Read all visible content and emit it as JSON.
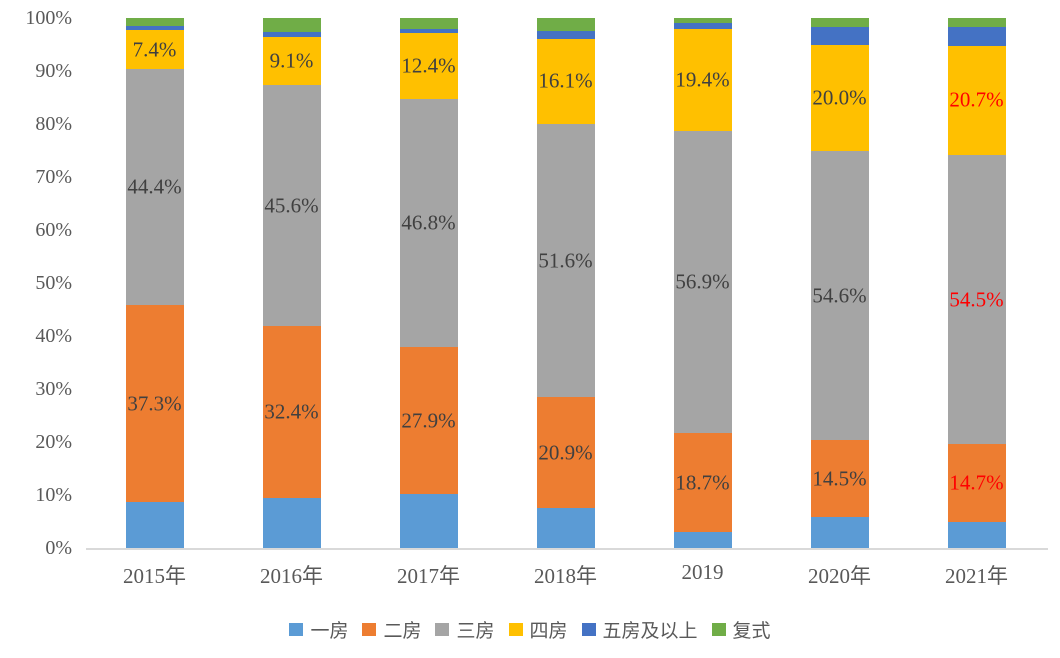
{
  "chart_data": {
    "type": "bar",
    "subtype": "stacked-100-percent",
    "title": "",
    "xlabel": "",
    "ylabel": "",
    "ylim": [
      0,
      100
    ],
    "grid": false,
    "y_ticks": [
      "0%",
      "10%",
      "20%",
      "30%",
      "40%",
      "50%",
      "60%",
      "70%",
      "80%",
      "90%",
      "100%"
    ],
    "categories": [
      "2015年",
      "2016年",
      "2017年",
      "2018年",
      "2019",
      "2020年",
      "2021年"
    ],
    "series": [
      {
        "name": "一房",
        "color": "#5B9BD5",
        "values": [
          8.6,
          9.4,
          10.1,
          7.5,
          3.0,
          5.8,
          4.9
        ],
        "labels": [
          "",
          "",
          "",
          "",
          "",
          "",
          ""
        ]
      },
      {
        "name": "二房",
        "color": "#ED7D31",
        "values": [
          37.3,
          32.4,
          27.9,
          20.9,
          18.7,
          14.5,
          14.7
        ],
        "labels": [
          "37.3%",
          "32.4%",
          "27.9%",
          "20.9%",
          "18.7%",
          "14.5%",
          "14.7%"
        ]
      },
      {
        "name": "三房",
        "color": "#A5A5A5",
        "values": [
          44.4,
          45.6,
          46.8,
          51.6,
          56.9,
          54.6,
          54.5
        ],
        "labels": [
          "44.4%",
          "45.6%",
          "46.8%",
          "51.6%",
          "56.9%",
          "54.6%",
          "54.5%"
        ]
      },
      {
        "name": "四房",
        "color": "#FFC000",
        "values": [
          7.4,
          9.1,
          12.4,
          16.1,
          19.4,
          20.0,
          20.7
        ],
        "labels": [
          "7.4%",
          "9.1%",
          "12.4%",
          "16.1%",
          "19.4%",
          "20.0%",
          "20.7%"
        ]
      },
      {
        "name": "五房及以上",
        "color": "#4472C4",
        "values": [
          0.8,
          0.9,
          0.8,
          1.5,
          1.0,
          3.5,
          3.5
        ],
        "labels": [
          "",
          "",
          "",
          "",
          "",
          "",
          ""
        ]
      },
      {
        "name": "复式",
        "color": "#70AD47",
        "values": [
          1.5,
          2.6,
          2.0,
          2.4,
          1.0,
          1.6,
          1.7
        ],
        "labels": [
          "",
          "",
          "",
          "",
          "",
          "",
          ""
        ]
      }
    ],
    "label_colors_per_category": [
      "#404040",
      "#404040",
      "#404040",
      "#404040",
      "#404040",
      "#404040",
      "#FF0000"
    ],
    "legend_position": "bottom",
    "legend_entries": [
      "一房",
      "二房",
      "三房",
      "四房",
      "五房及以上",
      "复式"
    ],
    "axis_text_color": "#595959",
    "baseline_color": "#D9D9D9"
  }
}
